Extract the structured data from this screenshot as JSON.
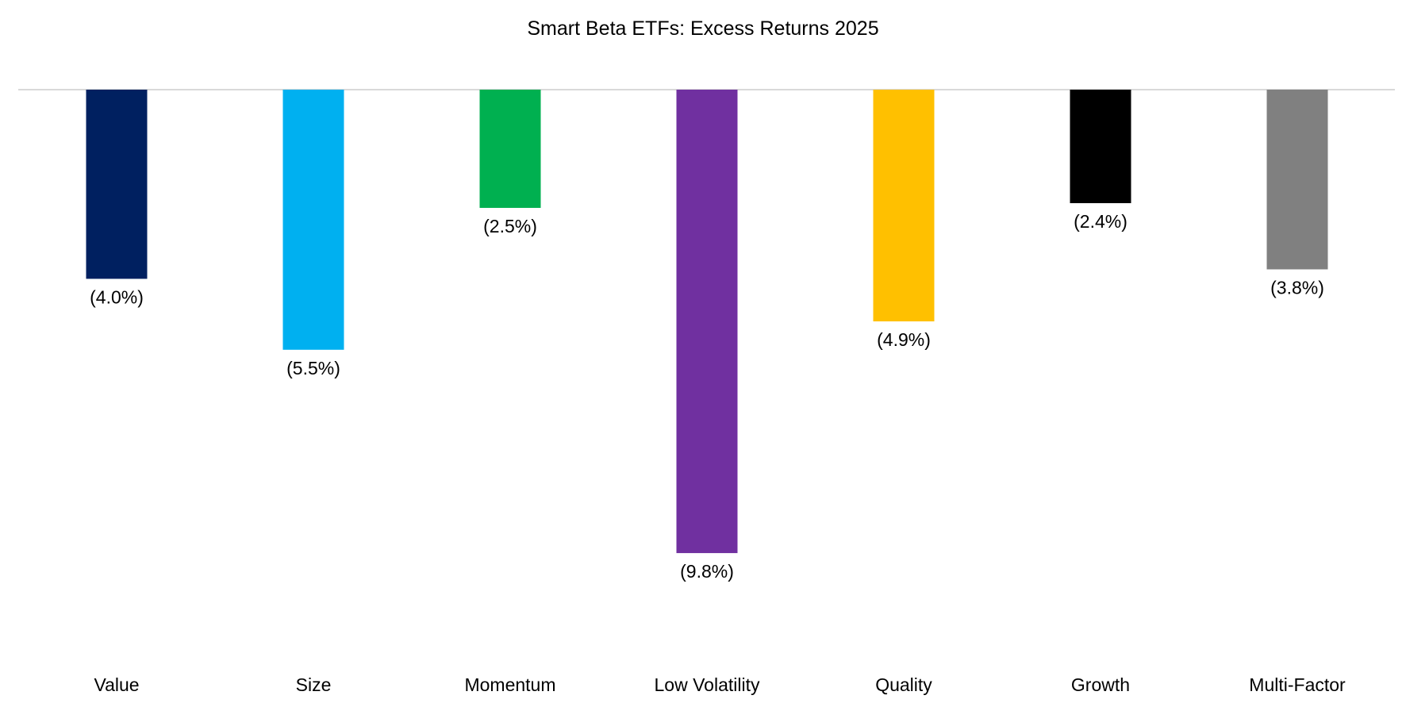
{
  "chart_data": {
    "type": "bar",
    "title": "Smart Beta ETFs: Excess Returns 2025",
    "xlabel": "",
    "ylabel": "",
    "categories": [
      "Value",
      "Size",
      "Momentum",
      "Low Volatility",
      "Quality",
      "Growth",
      "Multi-Factor"
    ],
    "values": [
      -4.0,
      -5.5,
      -2.5,
      -9.8,
      -4.9,
      -2.4,
      -3.8
    ],
    "data_labels": [
      "(4.0%)",
      "(5.5%)",
      "(2.5%)",
      "(9.8%)",
      "(4.9%)",
      "(2.4%)",
      "(3.8%)"
    ],
    "colors": [
      "#002060",
      "#00B0F0",
      "#00B050",
      "#7030A0",
      "#FFC000",
      "#000000",
      "#808080"
    ],
    "ylim": [
      -11,
      0
    ],
    "grid": false,
    "legend": "none",
    "axis_line_color": "#D9D9D9"
  }
}
